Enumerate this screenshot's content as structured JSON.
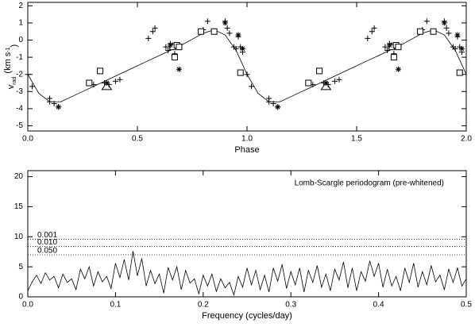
{
  "chart_data": [
    {
      "type": "scatter",
      "xlabel": "Phase",
      "ylabel": [
        "v",
        "rad",
        "(km s",
        "-1",
        ")"
      ],
      "xlim": [
        0,
        2
      ],
      "ylim": [
        -5.3,
        2.2
      ],
      "xticks": [
        {
          "value": 0,
          "label": "0.0"
        },
        {
          "value": 0.5,
          "label": "0.5"
        },
        {
          "value": 1,
          "label": "1.0"
        },
        {
          "value": 1.5,
          "label": "1.5"
        },
        {
          "value": 2,
          "label": "2.0"
        }
      ],
      "yticks": [
        -5,
        -4,
        -3,
        -2,
        -1,
        0,
        1,
        2
      ],
      "series": [
        {
          "marker": "line",
          "color": "#000",
          "x": [
            0,
            0.05,
            0.1,
            0.15,
            0.2,
            0.25,
            0.3,
            0.35,
            0.4,
            0.45,
            0.5,
            0.55,
            0.6,
            0.65,
            0.7,
            0.75,
            0.8,
            0.85,
            0.9,
            0.95,
            1.0,
            1.05,
            1.1,
            1.15,
            1.2,
            1.25,
            1.3,
            1.35,
            1.4,
            1.45,
            1.5,
            1.55,
            1.6,
            1.65,
            1.7,
            1.75,
            1.8,
            1.85,
            1.9,
            1.95,
            2.0
          ],
          "values": [
            -2.0,
            -3.1,
            -3.6,
            -3.6,
            -3.3,
            -3.0,
            -2.7,
            -2.4,
            -2.1,
            -1.8,
            -1.5,
            -1.2,
            -0.9,
            -0.6,
            -0.3,
            0.05,
            0.4,
            0.6,
            0.3,
            -0.6,
            -2.0,
            -3.1,
            -3.6,
            -3.6,
            -3.3,
            -3.0,
            -2.7,
            -2.4,
            -2.1,
            -1.8,
            -1.5,
            -1.2,
            -0.9,
            -0.6,
            -0.3,
            0.05,
            0.4,
            0.6,
            0.3,
            -0.6,
            -2.0
          ]
        },
        {
          "marker": "plus",
          "color": "#000",
          "x": [
            0.0,
            0.02,
            0.1,
            0.1,
            0.12,
            0.14,
            0.3,
            0.35,
            0.37,
            0.4,
            0.42,
            0.55,
            0.57,
            0.58,
            0.63,
            0.64,
            0.65,
            0.66,
            0.67,
            0.68,
            0.8,
            0.82,
            0.9,
            0.91,
            0.92,
            0.94,
            0.95,
            0.96,
            0.97,
            0.98,
            1.0,
            1.02,
            1.1,
            1.1,
            1.12,
            1.14,
            1.3,
            1.35,
            1.37,
            1.4,
            1.42,
            1.55,
            1.57,
            1.58,
            1.63,
            1.64,
            1.65,
            1.66,
            1.67,
            1.68,
            1.8,
            1.82,
            1.9,
            1.91,
            1.92,
            1.94,
            1.95,
            1.96,
            1.97,
            1.98
          ],
          "values": [
            -2.0,
            -2.7,
            -3.4,
            -3.6,
            -3.7,
            -3.9,
            -2.6,
            -2.5,
            -2.6,
            -2.4,
            -2.3,
            0.1,
            0.5,
            0.7,
            -0.4,
            -0.6,
            -0.2,
            -0.3,
            -0.8,
            -0.3,
            0.6,
            1.1,
            1.1,
            0.7,
            0.4,
            -0.4,
            -0.5,
            0.2,
            -0.4,
            -0.7,
            -2.0,
            -2.7,
            -3.4,
            -3.6,
            -3.7,
            -3.9,
            -2.6,
            -2.5,
            -2.6,
            -2.4,
            -2.3,
            0.1,
            0.5,
            0.7,
            -0.4,
            -0.6,
            -0.2,
            -0.3,
            -0.8,
            -0.3,
            0.6,
            1.1,
            1.1,
            0.7,
            0.4,
            -0.4,
            -0.5,
            0.2,
            -0.4,
            -0.7
          ]
        },
        {
          "marker": "square",
          "color": "#000",
          "x": [
            0.28,
            0.33,
            0.66,
            0.67,
            0.68,
            0.69,
            0.79,
            0.85,
            0.97,
            1.28,
            1.33,
            1.66,
            1.67,
            1.68,
            1.69,
            1.79,
            1.85,
            1.97
          ],
          "values": [
            -2.5,
            -1.8,
            -0.4,
            -1.0,
            -0.3,
            -0.4,
            0.5,
            0.5,
            -1.9,
            -2.5,
            -1.8,
            -0.4,
            -1.0,
            -0.3,
            -0.4,
            0.5,
            0.5,
            -1.9
          ]
        },
        {
          "marker": "asterisk",
          "color": "#000",
          "x": [
            0.14,
            0.36,
            0.65,
            0.69,
            0.9,
            0.96,
            0.98,
            1.14,
            1.36,
            1.65,
            1.69,
            1.9,
            1.96,
            1.98
          ],
          "values": [
            -3.9,
            -2.5,
            -0.3,
            -1.7,
            1.0,
            0.3,
            -0.5,
            -3.9,
            -2.5,
            -0.3,
            -1.7,
            1.0,
            0.3,
            -0.5
          ]
        },
        {
          "marker": "triangle",
          "color": "#000",
          "x": [
            0.36,
            1.36
          ],
          "values": [
            -2.7,
            -2.7
          ]
        }
      ]
    },
    {
      "type": "line",
      "xlabel": "Frequency (cycles/day)",
      "annotation": "Lomb-Scargle periodogram (pre-whitened)",
      "xlim": [
        0,
        0.5
      ],
      "ylim": [
        0,
        21
      ],
      "xticks": [
        {
          "value": 0,
          "label": "0.0"
        },
        0.1,
        0.2,
        0.3,
        0.4,
        0.5
      ],
      "yticks": [
        0,
        5,
        10,
        15,
        20
      ],
      "levels": [
        {
          "label": "0.001",
          "power": 9.6
        },
        {
          "label": "0.010",
          "power": 8.4
        },
        {
          "label": "0.050",
          "power": 7.0
        }
      ],
      "series": [
        {
          "color": "#000",
          "x": [
            0,
            0.005,
            0.01,
            0.015,
            0.02,
            0.025,
            0.03,
            0.035,
            0.04,
            0.045,
            0.05,
            0.055,
            0.06,
            0.065,
            0.07,
            0.075,
            0.08,
            0.085,
            0.09,
            0.095,
            0.1,
            0.105,
            0.11,
            0.115,
            0.12,
            0.125,
            0.13,
            0.135,
            0.14,
            0.145,
            0.15,
            0.155,
            0.16,
            0.165,
            0.17,
            0.175,
            0.18,
            0.185,
            0.19,
            0.195,
            0.2,
            0.205,
            0.21,
            0.215,
            0.22,
            0.225,
            0.23,
            0.235,
            0.24,
            0.245,
            0.25,
            0.255,
            0.26,
            0.265,
            0.27,
            0.275,
            0.28,
            0.285,
            0.29,
            0.295,
            0.3,
            0.305,
            0.31,
            0.315,
            0.32,
            0.325,
            0.33,
            0.335,
            0.34,
            0.345,
            0.35,
            0.355,
            0.36,
            0.365,
            0.37,
            0.375,
            0.38,
            0.385,
            0.39,
            0.395,
            0.4,
            0.405,
            0.41,
            0.415,
            0.42,
            0.425,
            0.43,
            0.435,
            0.44,
            0.445,
            0.45,
            0.455,
            0.46,
            0.465,
            0.47,
            0.475,
            0.48,
            0.485,
            0.49,
            0.495,
            0.5
          ],
          "values": [
            1.0,
            2.5,
            3.6,
            2.2,
            4.0,
            2.8,
            3.4,
            1.5,
            3.8,
            2.4,
            3.0,
            1.2,
            4.6,
            3.0,
            5.0,
            1.8,
            4.2,
            2.5,
            3.4,
            1.4,
            5.6,
            3.2,
            6.2,
            2.8,
            7.6,
            3.5,
            6.4,
            1.8,
            4.4,
            2.2,
            3.8,
            0.6,
            4.9,
            2.8,
            5.0,
            1.2,
            4.4,
            2.3,
            3.0,
            0.5,
            3.6,
            1.8,
            3.8,
            0.9,
            3.0,
            1.5,
            2.4,
            0.3,
            3.4,
            1.6,
            4.8,
            2.0,
            4.4,
            1.2,
            3.6,
            0.8,
            4.8,
            2.6,
            5.4,
            1.4,
            4.2,
            2.0,
            4.8,
            0.8,
            4.4,
            2.4,
            5.2,
            1.6,
            3.8,
            1.0,
            4.6,
            2.8,
            5.8,
            1.5,
            4.8,
            1.0,
            4.2,
            2.6,
            6.0,
            3.4,
            5.6,
            1.6,
            4.6,
            1.8,
            3.4,
            1.0,
            4.8,
            2.4,
            5.6,
            1.6,
            4.2,
            2.0,
            5.2,
            2.5,
            3.6,
            1.2,
            4.6,
            2.4,
            4.8,
            1.8,
            3.0
          ]
        }
      ]
    }
  ]
}
